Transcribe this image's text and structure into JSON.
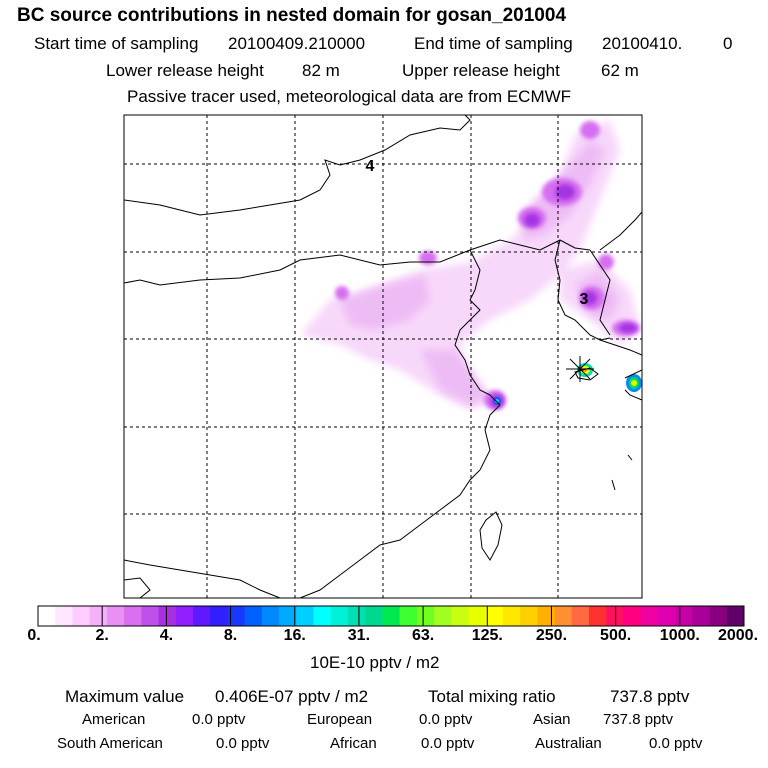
{
  "title": "BC  source contributions in nested domain for gosan_201004",
  "header": {
    "start_label": "Start time of sampling",
    "start_value": "20100409.210000",
    "end_label": "End time of sampling",
    "end_value": "20100410.",
    "end_extra": "0",
    "lower_label": "Lower release height",
    "lower_value": "82 m",
    "upper_label": "Upper release height",
    "upper_value": "62 m",
    "note": "Passive tracer used, meteorological data are from ECMWF"
  },
  "map_labels": [
    "4",
    "3"
  ],
  "chart_data": {
    "type": "heatmap",
    "title": "BC  source contributions in nested domain for gosan_201004",
    "colorbar": {
      "unit": "10E-10 pptv / m2",
      "ticks": [
        "0.",
        "2.",
        "4.",
        "8.",
        "16.",
        "31.",
        "63.",
        "125.",
        "250.",
        "500.",
        "1000.",
        "2000."
      ],
      "colors": [
        "#ffffff",
        "#ffe6ff",
        "#ffccff",
        "#f4b0f8",
        "#e890f4",
        "#d870f0",
        "#c050ea",
        "#a830e0",
        "#9020ff",
        "#6018ff",
        "#3020ff",
        "#1838ff",
        "#0060ff",
        "#0088ff",
        "#00aaff",
        "#00d0ff",
        "#00ffff",
        "#00f0d8",
        "#00e0b0",
        "#00d890",
        "#00e850",
        "#40ff30",
        "#70ff20",
        "#a0ff20",
        "#c8ff10",
        "#e8ff00",
        "#ffff00",
        "#ffe800",
        "#ffd000",
        "#ffb000",
        "#ff9030",
        "#ff6840",
        "#ff3030",
        "#ff1060",
        "#ff0080",
        "#f000a0",
        "#e000b0",
        "#c800a8",
        "#a80098",
        "#880080",
        "#600068"
      ]
    }
  },
  "footer": {
    "max_label": "Maximum value",
    "max_value": "0.406E-07 pptv / m2",
    "total_label": "Total mixing ratio",
    "total_value": "737.8 pptv",
    "sources": [
      {
        "name": "American",
        "value": "0.0 pptv"
      },
      {
        "name": "European",
        "value": "0.0 pptv"
      },
      {
        "name": "Asian",
        "value": "737.8 pptv"
      },
      {
        "name": "South American",
        "value": "0.0 pptv"
      },
      {
        "name": "African",
        "value": "0.0 pptv"
      },
      {
        "name": "Australian",
        "value": "0.0 pptv"
      }
    ]
  }
}
